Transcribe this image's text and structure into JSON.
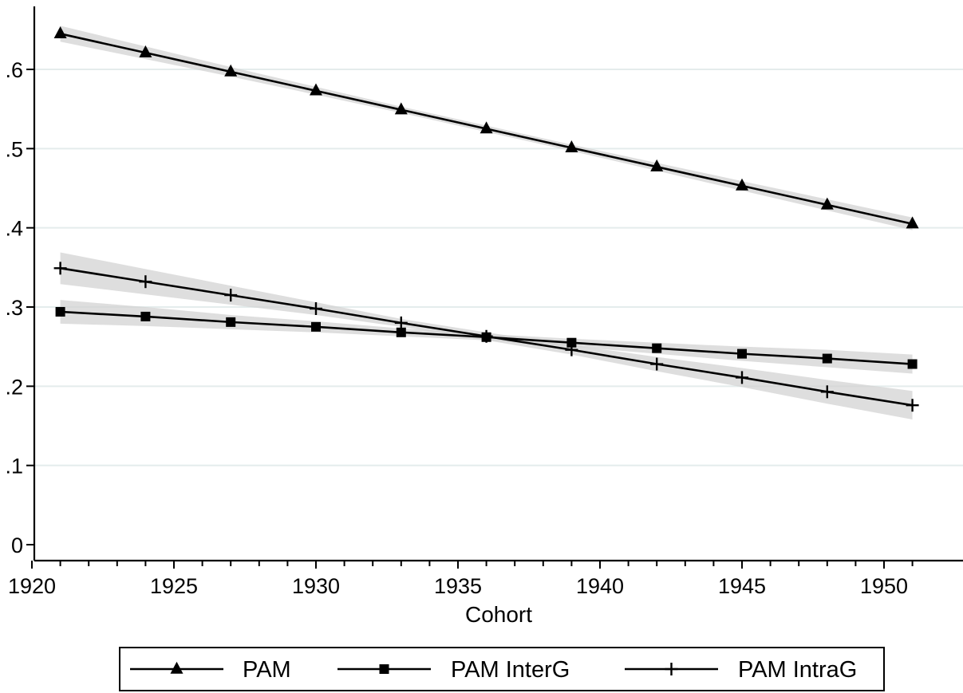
{
  "chart_data": {
    "type": "line",
    "title": "",
    "xlabel": "Cohort",
    "ylabel": "",
    "xlim": [
      1920,
      1951
    ],
    "ylim": [
      0,
      0.65
    ],
    "x_ticks": [
      1920,
      1925,
      1930,
      1935,
      1940,
      1945,
      1950
    ],
    "x_tick_labels": [
      "1920",
      "1925",
      "1930",
      "1935",
      "1940",
      "1945",
      "1950"
    ],
    "y_ticks": [
      0,
      0.1,
      0.2,
      0.3,
      0.4,
      0.5,
      0.6
    ],
    "y_tick_labels": [
      "0",
      ".1",
      ".2",
      ".3",
      ".4",
      ".5",
      ".6"
    ],
    "grid": true,
    "legend_position": "bottom",
    "x": [
      1921,
      1924,
      1927,
      1930,
      1933,
      1936,
      1939,
      1942,
      1945,
      1948,
      1951
    ],
    "series": [
      {
        "name": "PAM",
        "marker": "triangle",
        "values": [
          0.645,
          0.621,
          0.597,
          0.573,
          0.549,
          0.525,
          0.501,
          0.477,
          0.453,
          0.429,
          0.405
        ],
        "ci_low": [
          0.635,
          0.613,
          0.591,
          0.568,
          0.545,
          0.521,
          0.497,
          0.472,
          0.447,
          0.422,
          0.397
        ],
        "ci_high": [
          0.655,
          0.629,
          0.603,
          0.578,
          0.553,
          0.529,
          0.505,
          0.482,
          0.459,
          0.436,
          0.413
        ]
      },
      {
        "name": "PAM InterG",
        "marker": "square",
        "values": [
          0.294,
          0.288,
          0.281,
          0.275,
          0.268,
          0.262,
          0.255,
          0.248,
          0.241,
          0.235,
          0.228
        ],
        "ci_low": [
          0.279,
          0.276,
          0.272,
          0.268,
          0.263,
          0.258,
          0.25,
          0.241,
          0.232,
          0.224,
          0.216
        ],
        "ci_high": [
          0.309,
          0.3,
          0.29,
          0.282,
          0.273,
          0.266,
          0.26,
          0.255,
          0.25,
          0.246,
          0.24
        ]
      },
      {
        "name": "PAM IntraG",
        "marker": "plus",
        "values": [
          0.349,
          0.332,
          0.315,
          0.298,
          0.28,
          0.263,
          0.246,
          0.228,
          0.211,
          0.193,
          0.176
        ],
        "ci_low": [
          0.329,
          0.316,
          0.303,
          0.29,
          0.275,
          0.258,
          0.24,
          0.219,
          0.199,
          0.178,
          0.158
        ],
        "ci_high": [
          0.369,
          0.348,
          0.327,
          0.306,
          0.285,
          0.268,
          0.252,
          0.237,
          0.223,
          0.208,
          0.194
        ]
      }
    ]
  },
  "colors": {
    "line": "#000000",
    "ci_band": "#d3d3d3",
    "grid": "#e4ecec",
    "background": "#ffffff"
  }
}
